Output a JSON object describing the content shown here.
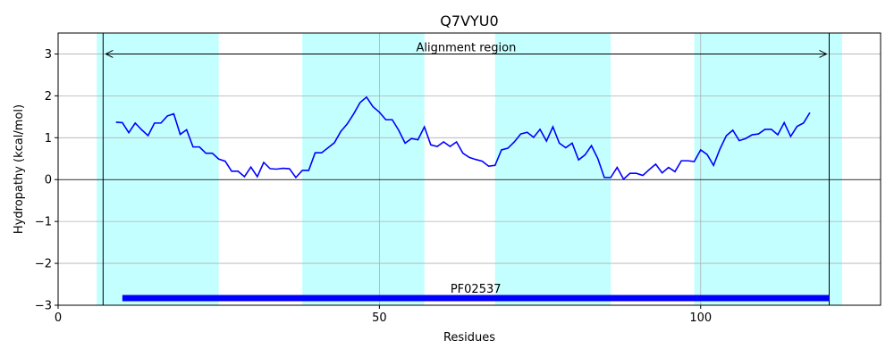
{
  "chart_data": {
    "type": "line",
    "title": "Q7VYU0",
    "xlabel": "Residues",
    "ylabel": "Hydropathy (kcal/mol)",
    "xlim": [
      0,
      128
    ],
    "ylim": [
      -3,
      3.5
    ],
    "xticks": [
      0,
      50,
      100
    ],
    "yticks": [
      -3,
      -2,
      -1,
      0,
      1,
      2,
      3
    ],
    "grid": true,
    "line_color": "#0000ff",
    "band_color": "#c4ffff",
    "domain_color": "#0000ff",
    "bands": [
      [
        6,
        25
      ],
      [
        38,
        57
      ],
      [
        68,
        86
      ],
      [
        99,
        122
      ]
    ],
    "alignment_region": {
      "start": 7,
      "end": 120,
      "label": "Alignment region",
      "y": 3.0
    },
    "domain": {
      "start": 10,
      "end": 120,
      "label": "PF02537",
      "y": -2.83
    },
    "series": [
      {
        "x": [
          9,
          10,
          11,
          12,
          13,
          14,
          15,
          16,
          17,
          18,
          19,
          20,
          21,
          22,
          23,
          24,
          25,
          26,
          27,
          28,
          29,
          30,
          31,
          32,
          33,
          34,
          35,
          36,
          37,
          38,
          39,
          40,
          41,
          42,
          43,
          44,
          45,
          46,
          47,
          48,
          49,
          50,
          51,
          52,
          53,
          54,
          55,
          56,
          57,
          58,
          59,
          60,
          61,
          62,
          63,
          64,
          65,
          66,
          67,
          68,
          69,
          70,
          71,
          72,
          73,
          74,
          75,
          76,
          77,
          78,
          79,
          80,
          81,
          82,
          83,
          84,
          85,
          86,
          87,
          88,
          89,
          90,
          91,
          92,
          93,
          94,
          95,
          96,
          97,
          98,
          99,
          100,
          101,
          102,
          103,
          104,
          105,
          106,
          107,
          108,
          109,
          110,
          111,
          112,
          113,
          114,
          115,
          116,
          117
        ],
        "values": [
          1.37,
          1.36,
          1.12,
          1.35,
          1.19,
          1.05,
          1.35,
          1.35,
          1.52,
          1.57,
          1.08,
          1.19,
          0.78,
          0.78,
          0.63,
          0.63,
          0.49,
          0.44,
          0.2,
          0.2,
          0.07,
          0.3,
          0.07,
          0.41,
          0.26,
          0.25,
          0.27,
          0.26,
          0.05,
          0.22,
          0.22,
          0.64,
          0.64,
          0.76,
          0.88,
          1.15,
          1.33,
          1.57,
          1.84,
          1.97,
          1.74,
          1.61,
          1.43,
          1.43,
          1.18,
          0.87,
          0.98,
          0.95,
          1.26,
          0.83,
          0.79,
          0.9,
          0.79,
          0.9,
          0.63,
          0.53,
          0.48,
          0.44,
          0.32,
          0.34,
          0.71,
          0.75,
          0.9,
          1.09,
          1.13,
          1.01,
          1.2,
          0.92,
          1.26,
          0.87,
          0.76,
          0.87,
          0.47,
          0.59,
          0.81,
          0.5,
          0.05,
          0.05,
          0.29,
          0.01,
          0.15,
          0.15,
          0.1,
          0.24,
          0.37,
          0.16,
          0.29,
          0.19,
          0.45,
          0.45,
          0.43,
          0.71,
          0.6,
          0.34,
          0.73,
          1.05,
          1.18,
          0.93,
          0.98,
          1.07,
          1.09,
          1.2,
          1.2,
          1.07,
          1.36,
          1.03,
          1.27,
          1.35,
          1.6
        ]
      }
    ]
  }
}
